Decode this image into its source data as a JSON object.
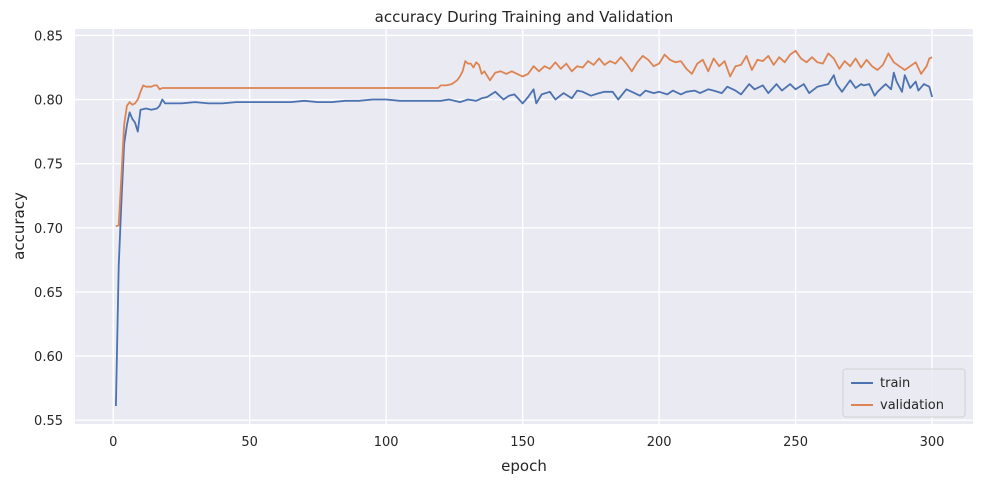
{
  "chart_data": {
    "type": "line",
    "title": "accuracy During Training and Validation",
    "xlabel": "epoch",
    "ylabel": "accuracy",
    "xlim": [
      -14,
      315
    ],
    "ylim": [
      0.547,
      0.855
    ],
    "xticks": [
      0,
      50,
      100,
      150,
      200,
      250,
      300
    ],
    "yticks": [
      0.55,
      0.6,
      0.65,
      0.7,
      0.75,
      0.8,
      0.85
    ],
    "ytick_labels": [
      "0.55",
      "0.60",
      "0.65",
      "0.70",
      "0.75",
      "0.80",
      "0.85"
    ],
    "grid": true,
    "legend_position": "lower-right",
    "background": "#eaeaf2",
    "series": [
      {
        "name": "train",
        "color": "#4c72b0",
        "x": [
          1,
          2,
          3,
          4,
          5,
          6,
          7,
          8,
          9,
          10,
          12,
          14,
          16,
          17,
          18,
          19,
          20,
          25,
          30,
          35,
          40,
          45,
          50,
          55,
          60,
          65,
          70,
          75,
          80,
          85,
          90,
          95,
          100,
          105,
          110,
          115,
          118,
          120,
          123,
          125,
          127,
          130,
          133,
          135,
          137,
          140,
          143,
          145,
          147,
          150,
          152,
          154,
          155,
          157,
          160,
          162,
          165,
          168,
          170,
          172,
          175,
          178,
          180,
          183,
          185,
          188,
          190,
          193,
          195,
          198,
          200,
          203,
          205,
          208,
          210,
          213,
          215,
          218,
          220,
          223,
          225,
          228,
          230,
          233,
          235,
          238,
          240,
          243,
          245,
          248,
          250,
          253,
          255,
          258,
          260,
          262,
          264,
          265,
          267,
          269,
          270,
          272,
          274,
          275,
          277,
          279,
          280,
          282,
          283,
          285,
          286,
          287,
          289,
          290,
          292,
          294,
          295,
          297,
          299,
          300
        ],
        "values": [
          0.561,
          0.67,
          0.72,
          0.765,
          0.78,
          0.79,
          0.785,
          0.782,
          0.775,
          0.792,
          0.793,
          0.792,
          0.793,
          0.795,
          0.8,
          0.797,
          0.797,
          0.797,
          0.798,
          0.797,
          0.797,
          0.798,
          0.798,
          0.798,
          0.798,
          0.798,
          0.799,
          0.798,
          0.798,
          0.799,
          0.799,
          0.8,
          0.8,
          0.799,
          0.799,
          0.799,
          0.799,
          0.799,
          0.8,
          0.799,
          0.798,
          0.8,
          0.799,
          0.801,
          0.802,
          0.806,
          0.8,
          0.803,
          0.804,
          0.797,
          0.802,
          0.808,
          0.797,
          0.804,
          0.806,
          0.8,
          0.805,
          0.801,
          0.807,
          0.806,
          0.803,
          0.805,
          0.806,
          0.806,
          0.8,
          0.808,
          0.806,
          0.803,
          0.807,
          0.805,
          0.806,
          0.804,
          0.807,
          0.804,
          0.806,
          0.807,
          0.805,
          0.808,
          0.807,
          0.805,
          0.81,
          0.807,
          0.804,
          0.812,
          0.808,
          0.811,
          0.805,
          0.812,
          0.807,
          0.812,
          0.808,
          0.812,
          0.805,
          0.81,
          0.811,
          0.812,
          0.819,
          0.812,
          0.806,
          0.812,
          0.815,
          0.809,
          0.812,
          0.811,
          0.812,
          0.803,
          0.806,
          0.81,
          0.812,
          0.808,
          0.821,
          0.814,
          0.806,
          0.819,
          0.809,
          0.814,
          0.807,
          0.812,
          0.81,
          0.802
        ]
      },
      {
        "name": "validation",
        "color": "#dd8452",
        "x": [
          1,
          2,
          3,
          4,
          5,
          6,
          7,
          8,
          9,
          10,
          11,
          12,
          13,
          14,
          15,
          16,
          17,
          18,
          20,
          25,
          30,
          40,
          50,
          60,
          70,
          80,
          90,
          100,
          110,
          118,
          119,
          120,
          122,
          124,
          126,
          127,
          128,
          129,
          130,
          131,
          132,
          133,
          134,
          135,
          136,
          138,
          140,
          142,
          144,
          146,
          148,
          150,
          152,
          154,
          156,
          158,
          160,
          162,
          164,
          166,
          168,
          170,
          172,
          174,
          176,
          178,
          180,
          182,
          184,
          186,
          188,
          190,
          192,
          194,
          196,
          198,
          200,
          202,
          204,
          206,
          208,
          210,
          212,
          214,
          216,
          218,
          220,
          222,
          224,
          226,
          228,
          230,
          232,
          234,
          236,
          238,
          240,
          242,
          244,
          246,
          248,
          250,
          252,
          254,
          256,
          258,
          260,
          262,
          264,
          266,
          268,
          270,
          272,
          274,
          276,
          278,
          280,
          282,
          284,
          286,
          288,
          290,
          292,
          294,
          296,
          298,
          299,
          300
        ],
        "values": [
          0.701,
          0.702,
          0.74,
          0.78,
          0.795,
          0.798,
          0.796,
          0.797,
          0.8,
          0.806,
          0.811,
          0.81,
          0.81,
          0.81,
          0.811,
          0.811,
          0.808,
          0.809,
          0.809,
          0.809,
          0.809,
          0.809,
          0.809,
          0.809,
          0.809,
          0.809,
          0.809,
          0.809,
          0.809,
          0.809,
          0.809,
          0.811,
          0.811,
          0.812,
          0.815,
          0.818,
          0.822,
          0.83,
          0.828,
          0.828,
          0.825,
          0.829,
          0.827,
          0.82,
          0.822,
          0.815,
          0.821,
          0.822,
          0.82,
          0.822,
          0.82,
          0.818,
          0.82,
          0.826,
          0.822,
          0.826,
          0.824,
          0.829,
          0.824,
          0.828,
          0.822,
          0.826,
          0.825,
          0.83,
          0.827,
          0.832,
          0.827,
          0.83,
          0.828,
          0.833,
          0.828,
          0.822,
          0.829,
          0.834,
          0.831,
          0.826,
          0.828,
          0.835,
          0.831,
          0.829,
          0.83,
          0.824,
          0.82,
          0.828,
          0.831,
          0.822,
          0.832,
          0.826,
          0.83,
          0.818,
          0.826,
          0.827,
          0.834,
          0.823,
          0.831,
          0.83,
          0.834,
          0.827,
          0.833,
          0.829,
          0.835,
          0.838,
          0.832,
          0.829,
          0.833,
          0.829,
          0.828,
          0.836,
          0.832,
          0.824,
          0.83,
          0.826,
          0.832,
          0.825,
          0.831,
          0.826,
          0.823,
          0.827,
          0.836,
          0.829,
          0.826,
          0.823,
          0.826,
          0.829,
          0.82,
          0.826,
          0.832,
          0.833
        ]
      }
    ]
  }
}
